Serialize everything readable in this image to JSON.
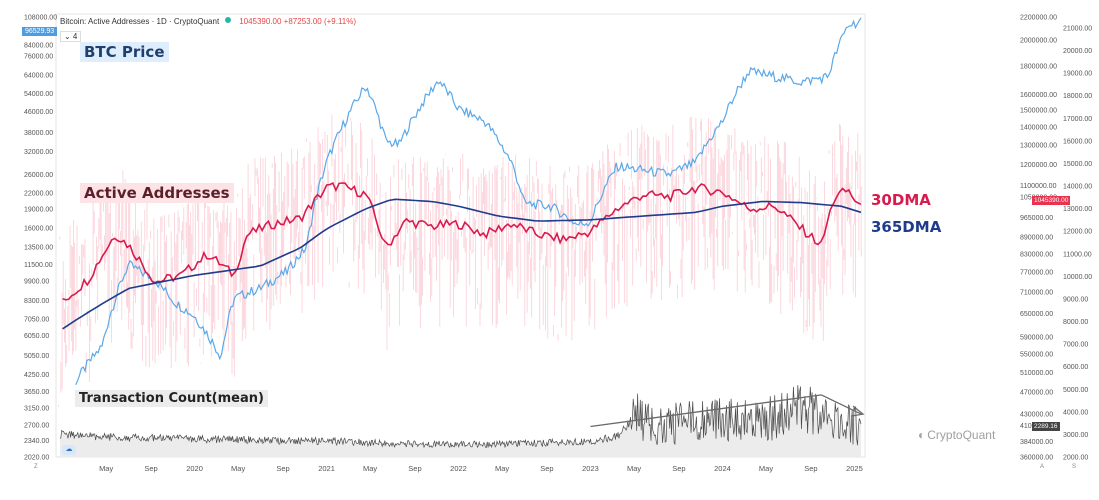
{
  "header": {
    "title": "Bitcoin: Active Addresses · 1D · CryptoQuant",
    "live_value": "1045390.00 +87253.00 (+9.11%)",
    "collapse_label": "⌄ 4"
  },
  "tags": {
    "price": "96529.93",
    "active_addresses": "1045390.00",
    "transactions": "2289.16"
  },
  "annotations": {
    "btc_price": "BTC Price",
    "active_addresses": "Active Addresses",
    "tx_count": "Transaction Count(mean)",
    "dma30": "30DMA",
    "dma365": "365DMA"
  },
  "brand": "CryptoQuant",
  "brand_icon": "cryptoquant-logo-icon",
  "scale_labels": {
    "left_bottom": "Z",
    "right_a": "A",
    "right_s": "S"
  },
  "colors": {
    "price": "#5aa8e8",
    "aa_raw": "#f8b9c3",
    "dma30": "#d81b4d",
    "dma365": "#1f3c8c",
    "tx": "#4a4a4a",
    "trend": "#6a6a6a"
  },
  "chart_data": {
    "type": "line",
    "x_ticks": [
      "May",
      "Sep",
      "2020",
      "May",
      "Sep",
      "2021",
      "May",
      "Sep",
      "2022",
      "May",
      "Sep",
      "2023",
      "May",
      "Sep",
      "2024",
      "May",
      "Sep",
      "2025"
    ],
    "left_axis_ticks": [
      "108000.00",
      "84000.00",
      "76000.00",
      "64000.00",
      "54000.00",
      "46000.00",
      "38000.00",
      "32000.00",
      "26000.00",
      "22000.00",
      "19000.00",
      "16000.00",
      "13500.00",
      "11500.00",
      "9900.00",
      "8300.00",
      "7050.00",
      "6050.00",
      "5050.00",
      "4250.00",
      "3650.00",
      "3150.00",
      "2700.00",
      "2340.00",
      "2020.00"
    ],
    "right_axis1_ticks": [
      "2200000.00",
      "2000000.00",
      "1800000.00",
      "1600000.00",
      "1500000.00",
      "1400000.00",
      "1300000.00",
      "1200000.00",
      "1100000.00",
      "1050000.00",
      "965000.00",
      "890000.00",
      "830000.00",
      "770000.00",
      "710000.00",
      "650000.00",
      "590000.00",
      "550000.00",
      "510000.00",
      "470000.00",
      "430000.00",
      "410000.00",
      "384000.00",
      "360000.00"
    ],
    "right_axis2_ticks": [
      "21000.00",
      "20000.00",
      "19000.00",
      "18000.00",
      "17000.00",
      "16000.00",
      "15000.00",
      "14000.00",
      "13000.00",
      "12000.00",
      "11000.00",
      "10000.00",
      "9000.00",
      "8000.00",
      "7000.00",
      "6000.00",
      "5000.00",
      "4000.00",
      "3000.00",
      "2000.00"
    ],
    "series": [
      {
        "name": "BTC Price",
        "x": [
          2019.1,
          2019.3,
          2019.5,
          2019.7,
          2019.85,
          2020.0,
          2020.2,
          2020.3,
          2020.5,
          2020.7,
          2020.85,
          2021.0,
          2021.1,
          2021.3,
          2021.45,
          2021.55,
          2021.7,
          2021.85,
          2022.0,
          2022.2,
          2022.4,
          2022.5,
          2022.7,
          2022.9,
          2023.0,
          2023.2,
          2023.4,
          2023.6,
          2023.8,
          2024.0,
          2024.2,
          2024.4,
          2024.6,
          2024.8,
          2024.95,
          2025.05
        ],
        "values": [
          4000,
          5500,
          11500,
          10000,
          8200,
          7200,
          5000,
          8500,
          9300,
          10800,
          13500,
          29000,
          38000,
          58000,
          35000,
          34000,
          47000,
          61000,
          47000,
          42000,
          29000,
          20000,
          19500,
          16500,
          17000,
          28000,
          27000,
          26000,
          29000,
          42000,
          66000,
          63000,
          60000,
          63000,
          100000,
          104000
        ]
      },
      {
        "name": "30DMA",
        "x": [
          2019.0,
          2019.2,
          2019.4,
          2019.5,
          2019.7,
          2019.9,
          2020.1,
          2020.3,
          2020.4,
          2020.6,
          2020.8,
          2021.0,
          2021.1,
          2021.3,
          2021.45,
          2021.6,
          2021.8,
          2022.0,
          2022.2,
          2022.4,
          2022.6,
          2022.8,
          2023.0,
          2023.2,
          2023.4,
          2023.6,
          2023.8,
          2024.0,
          2024.2,
          2024.4,
          2024.6,
          2024.75,
          2024.85,
          2024.95,
          2025.05
        ],
        "values": [
          680000,
          750000,
          900000,
          860000,
          740000,
          760000,
          830000,
          760000,
          900000,
          940000,
          960000,
          1090000,
          1100000,
          1060000,
          850000,
          950000,
          930000,
          940000,
          900000,
          940000,
          900000,
          880000,
          910000,
          1000000,
          1060000,
          1050000,
          1090000,
          1070000,
          1000000,
          1010000,
          920000,
          860000,
          1050000,
          1080000,
          1000000
        ]
      },
      {
        "name": "365DMA",
        "x": [
          2019.0,
          2019.5,
          2020.0,
          2020.5,
          2020.8,
          2021.0,
          2021.3,
          2021.5,
          2021.8,
          2022.0,
          2022.3,
          2022.6,
          2023.0,
          2023.4,
          2023.8,
          2024.0,
          2024.3,
          2024.6,
          2024.9,
          2025.05
        ],
        "values": [
          610000,
          720000,
          760000,
          790000,
          850000,
          920000,
          1000000,
          1040000,
          1030000,
          1010000,
          970000,
          950000,
          955000,
          970000,
          985000,
          1010000,
          1030000,
          1025000,
          1010000,
          985000
        ]
      },
      {
        "name": "Transaction Count(mean)",
        "x": [
          2019.0,
          2019.5,
          2020.0,
          2020.5,
          2021.0,
          2021.5,
          2022.0,
          2022.5,
          2023.0,
          2023.2,
          2023.35,
          2023.5,
          2023.8,
          2024.0,
          2024.3,
          2024.5,
          2024.7,
          2024.9,
          2025.05
        ],
        "values": [
          3000,
          2850,
          2800,
          2750,
          2700,
          2600,
          2550,
          2600,
          2700,
          2900,
          3900,
          3400,
          3600,
          3700,
          3500,
          4100,
          4000,
          3700,
          3200
        ]
      }
    ],
    "trend_arrows": {
      "rising": {
        "x": [
          2023.0,
          2024.75
        ],
        "y": [
          3350,
          4750
        ]
      },
      "falling": {
        "x": [
          2024.75,
          2025.05
        ],
        "y": [
          4750,
          3900
        ]
      }
    }
  }
}
